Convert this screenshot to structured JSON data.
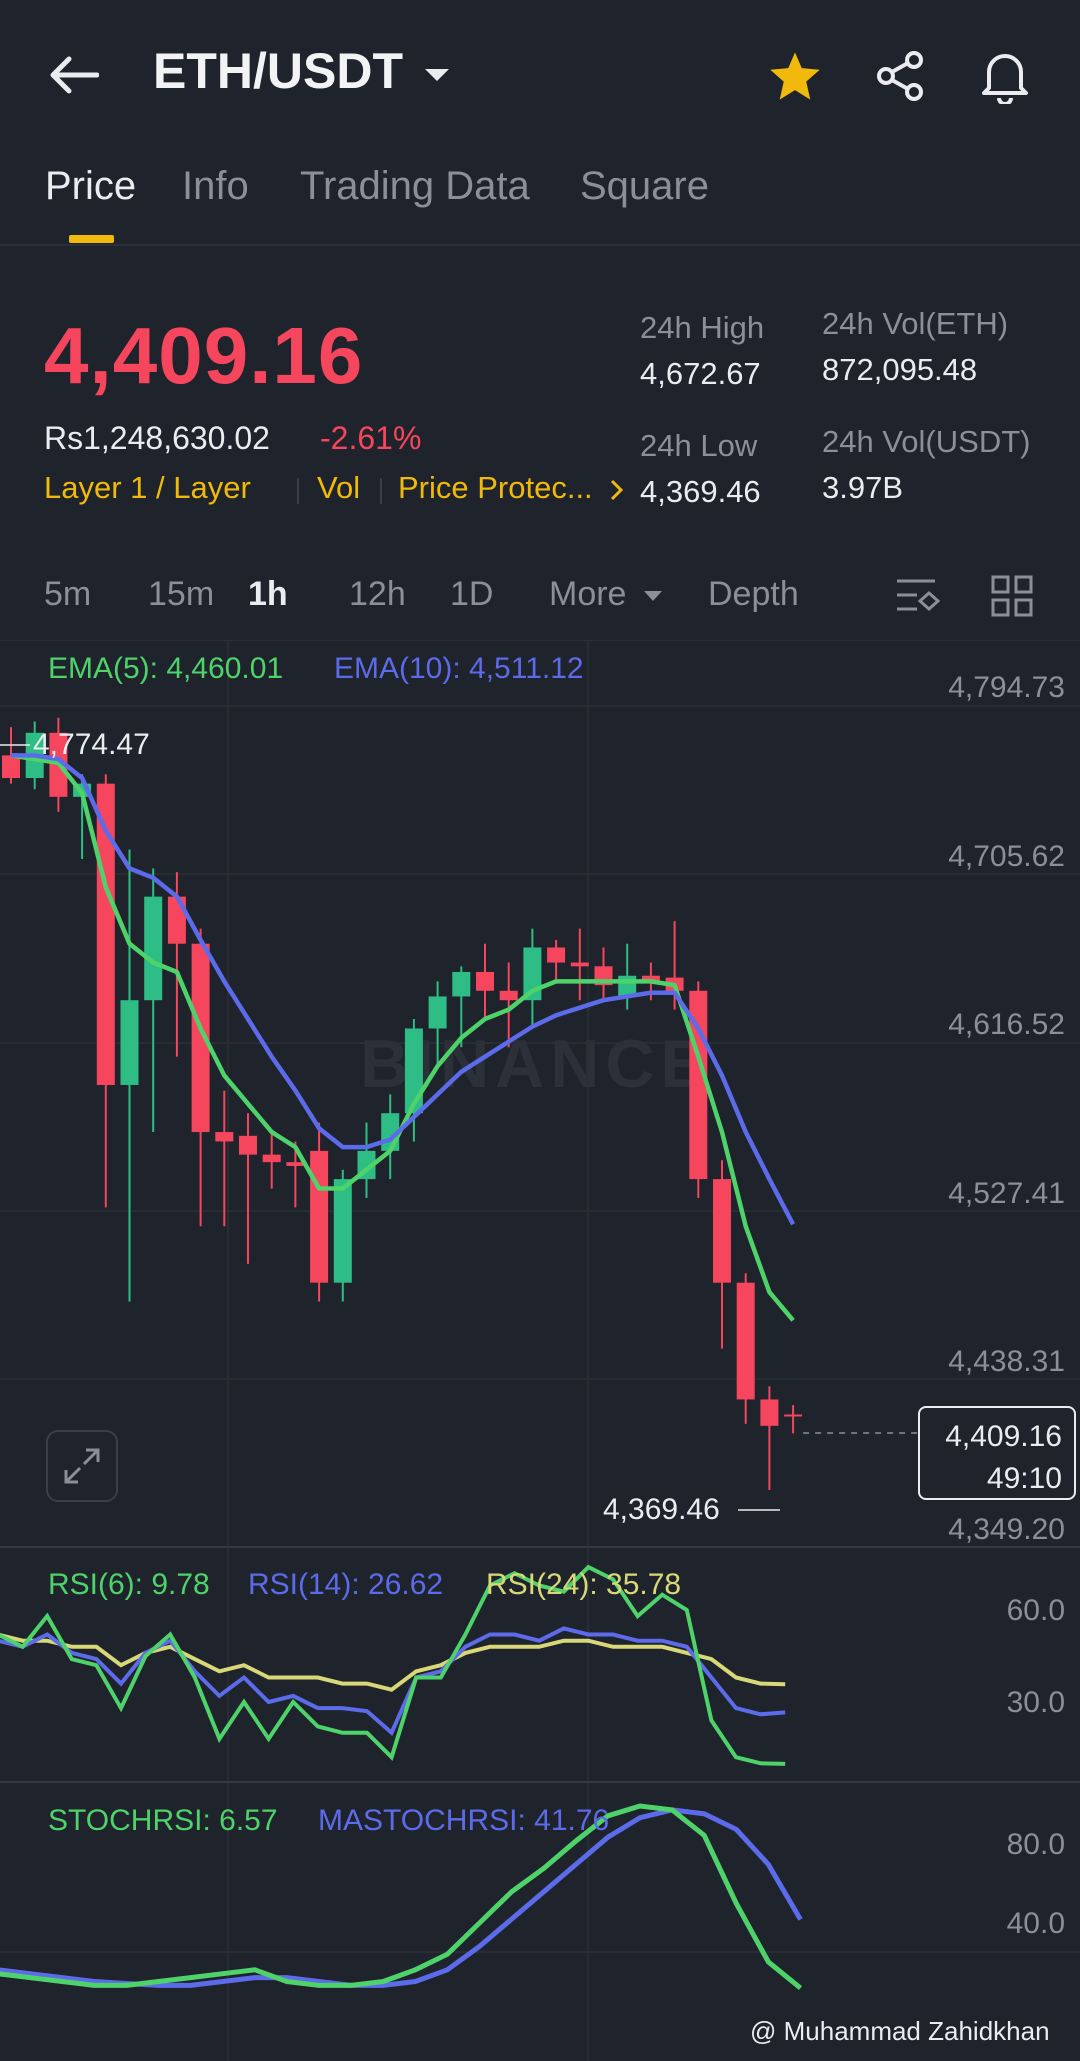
{
  "header": {
    "pair": "ETH/USDT"
  },
  "tabs": [
    "Price",
    "Info",
    "Trading Data",
    "Square"
  ],
  "price": {
    "last": "4,409.16",
    "fiat": "Rs1,248,630.02",
    "change": "-2.61%",
    "tags": [
      "Layer 1 / Layer",
      "Vol",
      "Price Protec..."
    ],
    "high_label": "24h High",
    "high": "4,672.67",
    "low_label": "24h Low",
    "low": "4,369.46",
    "vol_eth_label": "24h Vol(ETH)",
    "vol_eth": "872,095.48",
    "vol_usdt_label": "24h Vol(USDT)",
    "vol_usdt": "3.97B"
  },
  "intervals": [
    "5m",
    "15m",
    "1h",
    "12h",
    "1D",
    "More",
    "Depth"
  ],
  "chart": {
    "ema5": "EMA(5): 4,460.01",
    "ema10": "EMA(10): 4,511.12",
    "y_axis": [
      "4,794.73",
      "4,705.62",
      "4,616.52",
      "4,527.41",
      "4,438.31",
      "4,349.20"
    ],
    "max_marker": "4,774.47",
    "min_marker": "4,369.46",
    "current_price": "4,409.16",
    "countdown": "49:10",
    "watermark": "BINANCE",
    "rsi6": "RSI(6): 9.78",
    "rsi14": "RSI(14): 26.62",
    "rsi24": "RSI(24): 35.78",
    "rsi_axis": [
      "60.0",
      "30.0"
    ],
    "stochrsi": "STOCHRSI: 6.57",
    "mastochrsi": "MASTOCHRSI: 41.76",
    "stoch_axis": [
      "80.0",
      "40.0"
    ]
  },
  "credit": "@ Muhammad Zahidkhan",
  "colors": {
    "up": "#2ebd85",
    "down": "#f6465d",
    "accent": "#f0b90b",
    "ema5": "#4ed36a",
    "ema10": "#5c6bea",
    "rsi24": "#d8d878"
  },
  "chart_data": {
    "type": "candlestick",
    "interval": "1h",
    "candles": [
      {
        "o": 4760,
        "h": 4775,
        "l": 4745,
        "c": 4748
      },
      {
        "o": 4748,
        "h": 4778,
        "l": 4742,
        "c": 4772
      },
      {
        "o": 4772,
        "h": 4780,
        "l": 4730,
        "c": 4738
      },
      {
        "o": 4738,
        "h": 4750,
        "l": 4705,
        "c": 4745
      },
      {
        "o": 4745,
        "h": 4750,
        "l": 4520,
        "c": 4585
      },
      {
        "o": 4585,
        "h": 4710,
        "l": 4470,
        "c": 4630
      },
      {
        "o": 4630,
        "h": 4700,
        "l": 4560,
        "c": 4685
      },
      {
        "o": 4685,
        "h": 4698,
        "l": 4600,
        "c": 4660
      },
      {
        "o": 4660,
        "h": 4668,
        "l": 4510,
        "c": 4560
      },
      {
        "o": 4560,
        "h": 4582,
        "l": 4510,
        "c": 4555
      },
      {
        "o": 4558,
        "h": 4570,
        "l": 4490,
        "c": 4548
      },
      {
        "o": 4548,
        "h": 4560,
        "l": 4530,
        "c": 4544
      },
      {
        "o": 4544,
        "h": 4555,
        "l": 4520,
        "c": 4542
      },
      {
        "o": 4550,
        "h": 4565,
        "l": 4470,
        "c": 4480
      },
      {
        "o": 4480,
        "h": 4540,
        "l": 4470,
        "c": 4535
      },
      {
        "o": 4535,
        "h": 4565,
        "l": 4525,
        "c": 4550
      },
      {
        "o": 4550,
        "h": 4580,
        "l": 4535,
        "c": 4570
      },
      {
        "o": 4570,
        "h": 4620,
        "l": 4555,
        "c": 4615
      },
      {
        "o": 4615,
        "h": 4640,
        "l": 4595,
        "c": 4632
      },
      {
        "o": 4632,
        "h": 4648,
        "l": 4605,
        "c": 4645
      },
      {
        "o": 4645,
        "h": 4660,
        "l": 4620,
        "c": 4635
      },
      {
        "o": 4635,
        "h": 4650,
        "l": 4605,
        "c": 4630
      },
      {
        "o": 4630,
        "h": 4668,
        "l": 4615,
        "c": 4658
      },
      {
        "o": 4658,
        "h": 4662,
        "l": 4640,
        "c": 4650
      },
      {
        "o": 4650,
        "h": 4668,
        "l": 4630,
        "c": 4648
      },
      {
        "o": 4648,
        "h": 4658,
        "l": 4630,
        "c": 4638
      },
      {
        "o": 4632,
        "h": 4660,
        "l": 4625,
        "c": 4643
      },
      {
        "o": 4643,
        "h": 4650,
        "l": 4630,
        "c": 4640
      },
      {
        "o": 4642,
        "h": 4672,
        "l": 4625,
        "c": 4635
      },
      {
        "o": 4635,
        "h": 4640,
        "l": 4525,
        "c": 4535
      },
      {
        "o": 4535,
        "h": 4545,
        "l": 4445,
        "c": 4480
      },
      {
        "o": 4480,
        "h": 4485,
        "l": 4405,
        "c": 4418
      },
      {
        "o": 4418,
        "h": 4425,
        "l": 4370,
        "c": 4404
      },
      {
        "o": 4410,
        "h": 4415,
        "l": 4400,
        "c": 4409
      }
    ],
    "ema5": [
      4760,
      4758,
      4756,
      4740,
      4690,
      4660,
      4650,
      4645,
      4615,
      4590,
      4575,
      4560,
      4552,
      4530,
      4530,
      4540,
      4550,
      4575,
      4595,
      4610,
      4620,
      4625,
      4635,
      4640,
      4640,
      4640,
      4640,
      4640,
      4638,
      4600,
      4560,
      4510,
      4475,
      4460
    ],
    "ema10": [
      4760,
      4760,
      4758,
      4748,
      4720,
      4700,
      4695,
      4685,
      4662,
      4640,
      4620,
      4600,
      4582,
      4562,
      4552,
      4552,
      4556,
      4568,
      4580,
      4592,
      4600,
      4608,
      4616,
      4622,
      4626,
      4630,
      4632,
      4634,
      4634,
      4615,
      4590,
      4560,
      4535,
      4511
    ],
    "rsi6": [
      52,
      48,
      58,
      44,
      42,
      28,
      45,
      52,
      38,
      18,
      30,
      18,
      30,
      22,
      20,
      20,
      12,
      38,
      38,
      52,
      68,
      72,
      68,
      66,
      74,
      70,
      58,
      65,
      60,
      24,
      12,
      10,
      9.8
    ],
    "rsi14": [
      50,
      48,
      52,
      46,
      44,
      36,
      46,
      50,
      40,
      32,
      38,
      30,
      32,
      28,
      28,
      27,
      20,
      38,
      40,
      48,
      52,
      52,
      50,
      54,
      52,
      52,
      50,
      50,
      48,
      38,
      28,
      26,
      26.6
    ],
    "rsi24": [
      52,
      50,
      50,
      48,
      48,
      42,
      46,
      48,
      44,
      40,
      42,
      38,
      38,
      38,
      36,
      36,
      34,
      40,
      42,
      46,
      48,
      48,
      48,
      50,
      50,
      48,
      48,
      48,
      46,
      44,
      38,
      36,
      35.8
    ],
    "stochrsi": [
      14,
      12,
      10,
      8,
      8,
      10,
      12,
      14,
      16,
      10,
      8,
      8,
      10,
      16,
      24,
      40,
      56,
      68,
      82,
      95,
      100,
      98,
      85,
      50,
      20,
      6.6
    ],
    "mastochrsi": [
      16,
      14,
      12,
      10,
      9,
      8,
      8,
      10,
      12,
      12,
      10,
      8,
      8,
      10,
      16,
      28,
      42,
      56,
      70,
      84,
      94,
      98,
      96,
      88,
      70,
      41.8
    ],
    "y_range": [
      4349.2,
      4794.73
    ]
  }
}
